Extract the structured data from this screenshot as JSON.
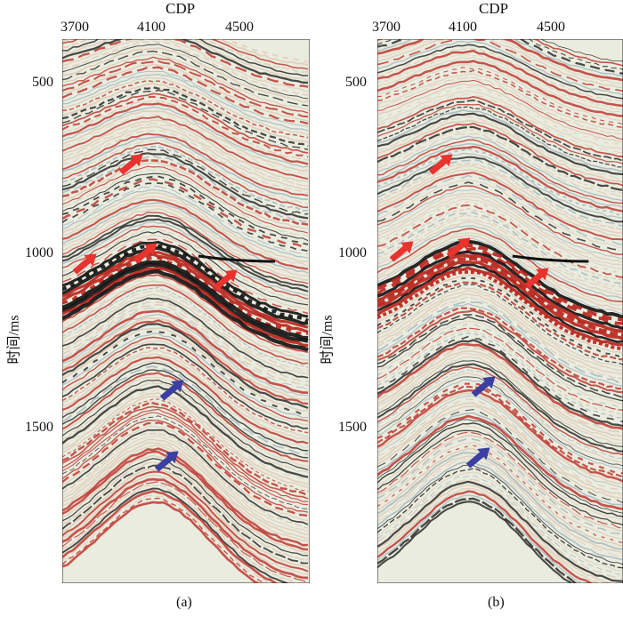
{
  "panels": [
    {
      "caption": "(a)",
      "x_title": "CDP",
      "x_ticks": [
        "3700",
        "4100",
        "4500"
      ],
      "y_title": "时间/ms",
      "y_ticks": [
        "500",
        "1000",
        "1500"
      ]
    },
    {
      "caption": "(b)",
      "x_title": "CDP",
      "x_ticks": [
        "3700",
        "4100",
        "4500"
      ],
      "y_title": "时间/ms",
      "y_ticks": [
        "500",
        "1000",
        "1500"
      ]
    }
  ],
  "colors": {
    "red_arrow": "#e8332f",
    "blue_arrow": "#3a3fa0",
    "seismic_red": "#b8221b",
    "seismic_black": "#111111",
    "seismic_bg": "#e9ecdf"
  }
}
